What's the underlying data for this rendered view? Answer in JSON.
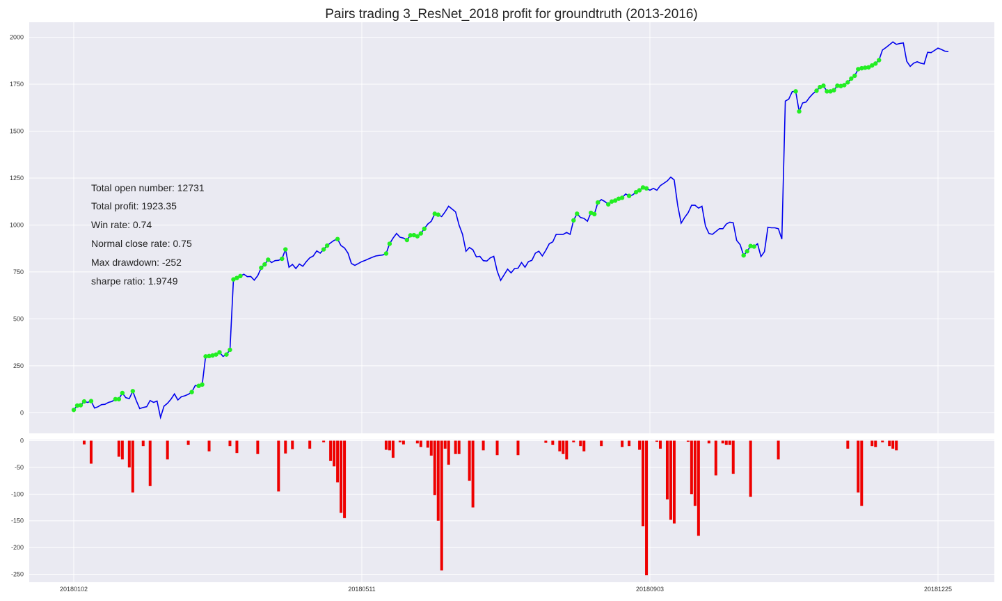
{
  "chart_data": {
    "type": "line",
    "title": "Pairs trading 3_ResNet_2018 profit for groundtruth (2013-2016)",
    "xlabel": "",
    "ylabel": "",
    "x_ticks": [
      "20180102",
      "20180511",
      "20180903",
      "20181225"
    ],
    "grid": true,
    "stats": [
      "Total open number: 12731",
      "Total profit: 1923.35",
      "Win rate: 0.74",
      "Normal close rate: 0.75",
      "Max drawdown: -252",
      "sharpe ratio: 1.9749"
    ],
    "colors": {
      "profit_line": "#0000ee",
      "markers": "#22ee22",
      "drawdown_bars": "#ee0000",
      "plot_bg": "#eaeaf2",
      "grid": "#ffffff"
    },
    "profit": {
      "ylim": [
        -110,
        2080
      ],
      "y_ticks": [
        0,
        250,
        500,
        750,
        1000,
        1250,
        1500,
        1750,
        2000
      ],
      "values": [
        15,
        38,
        40,
        60,
        55,
        62,
        25,
        32,
        43,
        45,
        55,
        60,
        72,
        72,
        105,
        80,
        75,
        115,
        65,
        22,
        28,
        32,
        65,
        55,
        62,
        -25,
        35,
        50,
        72,
        100,
        68,
        85,
        90,
        98,
        110,
        145,
        143,
        150,
        300,
        302,
        305,
        310,
        322,
        300,
        310,
        335,
        710,
        718,
        728,
        738,
        725,
        726,
        706,
        730,
        772,
        790,
        815,
        800,
        810,
        812,
        820,
        870,
        775,
        790,
        768,
        792,
        780,
        805,
        825,
        835,
        862,
        850,
        870,
        890,
        905,
        918,
        925,
        890,
        878,
        850,
        795,
        785,
        795,
        805,
        812,
        820,
        828,
        835,
        838,
        840,
        848,
        900,
        930,
        955,
        935,
        930,
        920,
        945,
        946,
        940,
        955,
        980,
        1005,
        1020,
        1060,
        1055,
        1045,
        1070,
        1100,
        1085,
        1070,
        1000,
        950,
        860,
        880,
        868,
        830,
        833,
        810,
        808,
        825,
        833,
        755,
        705,
        735,
        765,
        745,
        768,
        770,
        800,
        775,
        805,
        812,
        850,
        860,
        835,
        865,
        900,
        910,
        950,
        950,
        950,
        960,
        950,
        1025,
        1060,
        1040,
        1035,
        1020,
        1065,
        1058,
        1120,
        1135,
        1125,
        1110,
        1125,
        1130,
        1140,
        1145,
        1165,
        1155,
        1160,
        1175,
        1185,
        1200,
        1195,
        1185,
        1195,
        1185,
        1210,
        1222,
        1235,
        1255,
        1240,
        1105,
        1010,
        1040,
        1065,
        1105,
        1105,
        1090,
        1100,
        995,
        955,
        950,
        965,
        980,
        980,
        1005,
        1015,
        1012,
        918,
        895,
        838,
        860,
        888,
        885,
        900,
        832,
        858,
        988,
        985,
        985,
        980,
        925,
        1660,
        1670,
        1710,
        1712,
        1605,
        1650,
        1655,
        1680,
        1700,
        1715,
        1735,
        1742,
        1712,
        1712,
        1718,
        1742,
        1740,
        1745,
        1760,
        1780,
        1795,
        1830,
        1835,
        1838,
        1840,
        1850,
        1860,
        1878,
        1932,
        1945,
        1960,
        1975,
        1962,
        1967,
        1970,
        1872,
        1845,
        1862,
        1870,
        1862,
        1858,
        1920,
        1918,
        1930,
        1942,
        1935,
        1926,
        1924
      ],
      "marker_indices": [
        0,
        1,
        2,
        3,
        5,
        12,
        13,
        14,
        17,
        34,
        36,
        37,
        38,
        39,
        40,
        41,
        42,
        44,
        45,
        46,
        47,
        48,
        54,
        55,
        56,
        60,
        61,
        72,
        73,
        76,
        90,
        91,
        96,
        97,
        98,
        99,
        100,
        101,
        104,
        105,
        144,
        145,
        149,
        150,
        151,
        154,
        155,
        156,
        157,
        158,
        160,
        162,
        163,
        164,
        165,
        193,
        194,
        195,
        196,
        208,
        209,
        214,
        215,
        216,
        217,
        218,
        219,
        220,
        221,
        222,
        223,
        224,
        225,
        226,
        227,
        228,
        229,
        230,
        231,
        232
      ]
    },
    "drawdown": {
      "ylim": [
        -265,
        2
      ],
      "y_ticks": [
        0,
        -50,
        -100,
        -150,
        -200,
        -250
      ],
      "bars": [
        {
          "i": 3,
          "v": -7
        },
        {
          "i": 5,
          "v": -43
        },
        {
          "i": 13,
          "v": -30
        },
        {
          "i": 14,
          "v": -35
        },
        {
          "i": 16,
          "v": -50
        },
        {
          "i": 17,
          "v": -97
        },
        {
          "i": 20,
          "v": -10
        },
        {
          "i": 22,
          "v": -85
        },
        {
          "i": 27,
          "v": -35
        },
        {
          "i": 33,
          "v": -8
        },
        {
          "i": 39,
          "v": -20
        },
        {
          "i": 45,
          "v": -10
        },
        {
          "i": 47,
          "v": -23
        },
        {
          "i": 53,
          "v": -25
        },
        {
          "i": 59,
          "v": -95
        },
        {
          "i": 61,
          "v": -24
        },
        {
          "i": 63,
          "v": -16
        },
        {
          "i": 68,
          "v": -15
        },
        {
          "i": 72,
          "v": -3
        },
        {
          "i": 74,
          "v": -38
        },
        {
          "i": 75,
          "v": -48
        },
        {
          "i": 76,
          "v": -78
        },
        {
          "i": 77,
          "v": -135
        },
        {
          "i": 78,
          "v": -145
        },
        {
          "i": 90,
          "v": -17
        },
        {
          "i": 91,
          "v": -18
        },
        {
          "i": 92,
          "v": -32
        },
        {
          "i": 94,
          "v": -3
        },
        {
          "i": 95,
          "v": -7
        },
        {
          "i": 99,
          "v": -5
        },
        {
          "i": 100,
          "v": -12
        },
        {
          "i": 102,
          "v": -13
        },
        {
          "i": 103,
          "v": -28
        },
        {
          "i": 104,
          "v": -102
        },
        {
          "i": 105,
          "v": -150
        },
        {
          "i": 106,
          "v": -243
        },
        {
          "i": 107,
          "v": -15
        },
        {
          "i": 108,
          "v": -45
        },
        {
          "i": 110,
          "v": -25
        },
        {
          "i": 111,
          "v": -25
        },
        {
          "i": 114,
          "v": -75
        },
        {
          "i": 115,
          "v": -125
        },
        {
          "i": 118,
          "v": -18
        },
        {
          "i": 122,
          "v": -27
        },
        {
          "i": 128,
          "v": -27
        },
        {
          "i": 136,
          "v": -4
        },
        {
          "i": 138,
          "v": -8
        },
        {
          "i": 140,
          "v": -20
        },
        {
          "i": 141,
          "v": -25
        },
        {
          "i": 142,
          "v": -35
        },
        {
          "i": 144,
          "v": -3
        },
        {
          "i": 146,
          "v": -10
        },
        {
          "i": 147,
          "v": -20
        },
        {
          "i": 152,
          "v": -10
        },
        {
          "i": 158,
          "v": -12
        },
        {
          "i": 160,
          "v": -10
        },
        {
          "i": 163,
          "v": -17
        },
        {
          "i": 164,
          "v": -160
        },
        {
          "i": 165,
          "v": -252
        },
        {
          "i": 168,
          "v": -2
        },
        {
          "i": 169,
          "v": -15
        },
        {
          "i": 171,
          "v": -110
        },
        {
          "i": 172,
          "v": -148
        },
        {
          "i": 173,
          "v": -155
        },
        {
          "i": 177,
          "v": -2
        },
        {
          "i": 178,
          "v": -100
        },
        {
          "i": 179,
          "v": -122
        },
        {
          "i": 180,
          "v": -178
        },
        {
          "i": 183,
          "v": -5
        },
        {
          "i": 185,
          "v": -65
        },
        {
          "i": 187,
          "v": -5
        },
        {
          "i": 188,
          "v": -8
        },
        {
          "i": 189,
          "v": -8
        },
        {
          "i": 190,
          "v": -62
        },
        {
          "i": 195,
          "v": -105
        },
        {
          "i": 203,
          "v": -35
        },
        {
          "i": 223,
          "v": -15
        },
        {
          "i": 226,
          "v": -97
        },
        {
          "i": 227,
          "v": -122
        },
        {
          "i": 230,
          "v": -10
        },
        {
          "i": 231,
          "v": -12
        },
        {
          "i": 233,
          "v": -3
        },
        {
          "i": 235,
          "v": -10
        },
        {
          "i": 236,
          "v": -15
        },
        {
          "i": 237,
          "v": -18
        }
      ]
    }
  }
}
